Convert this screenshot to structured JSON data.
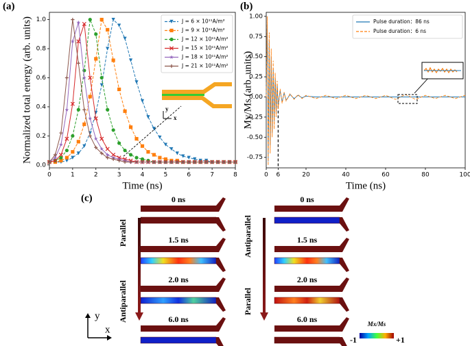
{
  "chart_data": [
    {
      "type": "line",
      "label": "(a)",
      "x_label": "Time (ns)",
      "y_label": "Normalized total energy (arb. units)",
      "xlim": [
        0,
        8
      ],
      "ylim": [
        -0.02,
        1.05
      ],
      "xticks": [
        0,
        1,
        2,
        3,
        4,
        5,
        6,
        7,
        8
      ],
      "yticks": [
        {
          "value": 0,
          "label": "0.0"
        },
        0.2,
        0.4,
        0.6,
        0.8,
        {
          "value": 1,
          "label": "1.0"
        }
      ],
      "legend": "upper right",
      "inset_axes": {
        "y": "y",
        "x": "x"
      },
      "x": [
        0,
        0.25,
        0.5,
        0.75,
        1,
        1.25,
        1.5,
        1.75,
        2,
        2.25,
        2.5,
        2.75,
        3,
        3.25,
        3.5,
        3.75,
        4,
        4.25,
        4.5,
        4.75,
        5,
        5.25,
        5.5,
        5.75,
        6,
        6.25,
        6.5,
        6.75,
        7,
        7.25,
        7.5,
        7.75,
        8
      ],
      "series": [
        {
          "name": "J = 6 × 10¹¹A/m²",
          "color": "#1f77b4",
          "linestyle": "dashed",
          "marker": "triangle_down",
          "values": [
            0.02,
            0.02,
            0.02,
            0.03,
            0.05,
            0.08,
            0.13,
            0.22,
            0.36,
            0.55,
            0.8,
            1.0,
            0.96,
            0.87,
            0.72,
            0.57,
            0.44,
            0.33,
            0.25,
            0.19,
            0.14,
            0.11,
            0.08,
            0.06,
            0.05,
            0.04,
            0.03,
            0.03,
            0.02,
            0.02,
            0.02,
            0.02,
            0.02
          ]
        },
        {
          "name": "J = 9 × 10¹¹A/m²",
          "color": "#ff7f0e",
          "linestyle": "dashed",
          "marker": "square",
          "values": [
            0.02,
            0.02,
            0.03,
            0.05,
            0.09,
            0.16,
            0.28,
            0.47,
            0.73,
            1.0,
            0.93,
            0.72,
            0.52,
            0.37,
            0.26,
            0.18,
            0.13,
            0.09,
            0.07,
            0.05,
            0.04,
            0.03,
            0.03,
            0.02,
            0.02,
            0.02,
            0.02,
            0.02,
            0.02,
            0.02,
            0.02,
            0.02,
            0.02
          ]
        },
        {
          "name": "J = 12 × 10¹¹A/m²",
          "color": "#2ca02c",
          "linestyle": "dashed",
          "marker": "circle",
          "values": [
            0.02,
            0.03,
            0.05,
            0.1,
            0.2,
            0.38,
            0.65,
            1.0,
            0.9,
            0.6,
            0.38,
            0.24,
            0.15,
            0.1,
            0.07,
            0.05,
            0.04,
            0.03,
            0.02,
            0.02,
            0.02,
            0.02,
            0.02,
            0.02,
            0.02,
            0.02,
            0.02,
            0.02,
            0.02,
            0.02,
            0.02,
            0.02,
            0.02
          ]
        },
        {
          "name": "J = 15 × 10¹¹A/m²",
          "color": "#d62728",
          "linestyle": "solid",
          "marker": "x",
          "values": [
            0.02,
            0.03,
            0.07,
            0.18,
            0.42,
            0.85,
            0.97,
            0.6,
            0.32,
            0.18,
            0.11,
            0.07,
            0.05,
            0.04,
            0.03,
            0.02,
            0.02,
            0.02,
            0.02,
            0.02,
            0.02,
            0.02,
            0.02,
            0.02,
            0.02,
            0.02,
            0.02,
            0.02,
            0.02,
            0.02,
            0.02,
            0.02,
            0.02
          ]
        },
        {
          "name": "J = 18 × 10¹¹A/m²",
          "color": "#9467bd",
          "linestyle": "solid",
          "marker": "star",
          "values": [
            0.02,
            0.05,
            0.14,
            0.38,
            0.85,
            0.98,
            0.6,
            0.32,
            0.18,
            0.11,
            0.07,
            0.05,
            0.04,
            0.03,
            0.02,
            0.02,
            0.02,
            0.02,
            0.02,
            0.02,
            0.02,
            0.02,
            0.02,
            0.02,
            0.02,
            0.02,
            0.02,
            0.02,
            0.02,
            0.02,
            0.02,
            0.02,
            0.02
          ]
        },
        {
          "name": "J = 21 × 10¹¹A/m²",
          "color": "#8c564b",
          "linestyle": "solid",
          "marker": "plus",
          "values": [
            0.02,
            0.07,
            0.22,
            0.6,
            1.0,
            0.7,
            0.38,
            0.2,
            0.12,
            0.08,
            0.05,
            0.04,
            0.03,
            0.02,
            0.02,
            0.02,
            0.02,
            0.02,
            0.02,
            0.02,
            0.02,
            0.02,
            0.02,
            0.02,
            0.02,
            0.02,
            0.02,
            0.02,
            0.02,
            0.02,
            0.02,
            0.02,
            0.02
          ]
        }
      ]
    },
    {
      "type": "line",
      "label": "(b)",
      "x_label": "Time (ns)",
      "y_label": "My/Ms (arb. units)",
      "xlim": [
        0,
        100
      ],
      "ylim": [
        -0.88,
        1.05
      ],
      "xticks": [
        0,
        6,
        20,
        40,
        60,
        80,
        100
      ],
      "yticks": [
        -0.75,
        {
          "value": -0.5,
          "label": "-0.50"
        },
        -0.25,
        {
          "value": 0,
          "label": "0.00"
        },
        0.25,
        {
          "value": 0.5,
          "label": "0.50"
        },
        0.75,
        {
          "value": 1,
          "label": "1.00"
        }
      ],
      "vline": 6,
      "legend": "upper right",
      "x": [
        0,
        0.5,
        1,
        1.5,
        2,
        2.5,
        3,
        3.5,
        4,
        4.5,
        5,
        5.5,
        6,
        7,
        8,
        9,
        10,
        12,
        14,
        16,
        18,
        20,
        25,
        30,
        35,
        40,
        45,
        50,
        55,
        60,
        65,
        70,
        75,
        80,
        85,
        90,
        95,
        100
      ],
      "series": [
        {
          "name": "Pulse duration：86 ns",
          "color": "#1f77b4",
          "linestyle": "solid",
          "values": [
            0,
            0.9,
            -0.8,
            0.7,
            -0.6,
            0.5,
            -0.45,
            0.35,
            -0.3,
            0.25,
            -0.2,
            0.15,
            -0.1,
            0.08,
            -0.06,
            0.05,
            -0.04,
            0.03,
            -0.02,
            0.02,
            -0.01,
            0.01,
            0,
            0,
            0,
            0,
            0,
            0,
            0,
            0,
            0,
            0,
            0,
            0,
            0,
            0,
            0,
            0
          ]
        },
        {
          "name": "Pulse duration：6 ns",
          "color": "#ff7f0e",
          "linestyle": "dashed",
          "values": [
            0,
            1.0,
            -0.85,
            0.8,
            -0.7,
            0.6,
            -0.5,
            0.45,
            -0.4,
            0.3,
            -0.25,
            0.2,
            -0.15,
            0.1,
            -0.08,
            0.06,
            -0.05,
            0.04,
            -0.03,
            0.03,
            -0.02,
            0.02,
            -0.02,
            0.02,
            -0.02,
            0.02,
            -0.02,
            0.02,
            -0.02,
            0.02,
            -0.03,
            0.03,
            -0.03,
            0.02,
            -0.02,
            0.02,
            -0.02,
            0.02
          ]
        }
      ]
    }
  ],
  "diagram": {
    "label": "(c)",
    "columns": [
      {
        "rows": [
          "0 ns",
          "1.5 ns",
          "2.0 ns",
          "6.0 ns"
        ],
        "arrow_labels": [
          "Parallel",
          "Antiparallel"
        ]
      },
      {
        "rows": [
          "0 ns",
          "1.5 ns",
          "2.0 ns",
          "6.0 ns"
        ],
        "arrow_labels": [
          "Antiparallel",
          "Parallel"
        ]
      }
    ],
    "axes": {
      "y": "y",
      "x": "x"
    },
    "colorbar": {
      "title": "Mx/Ms",
      "min_label": "-1",
      "max_label": "+1"
    }
  }
}
